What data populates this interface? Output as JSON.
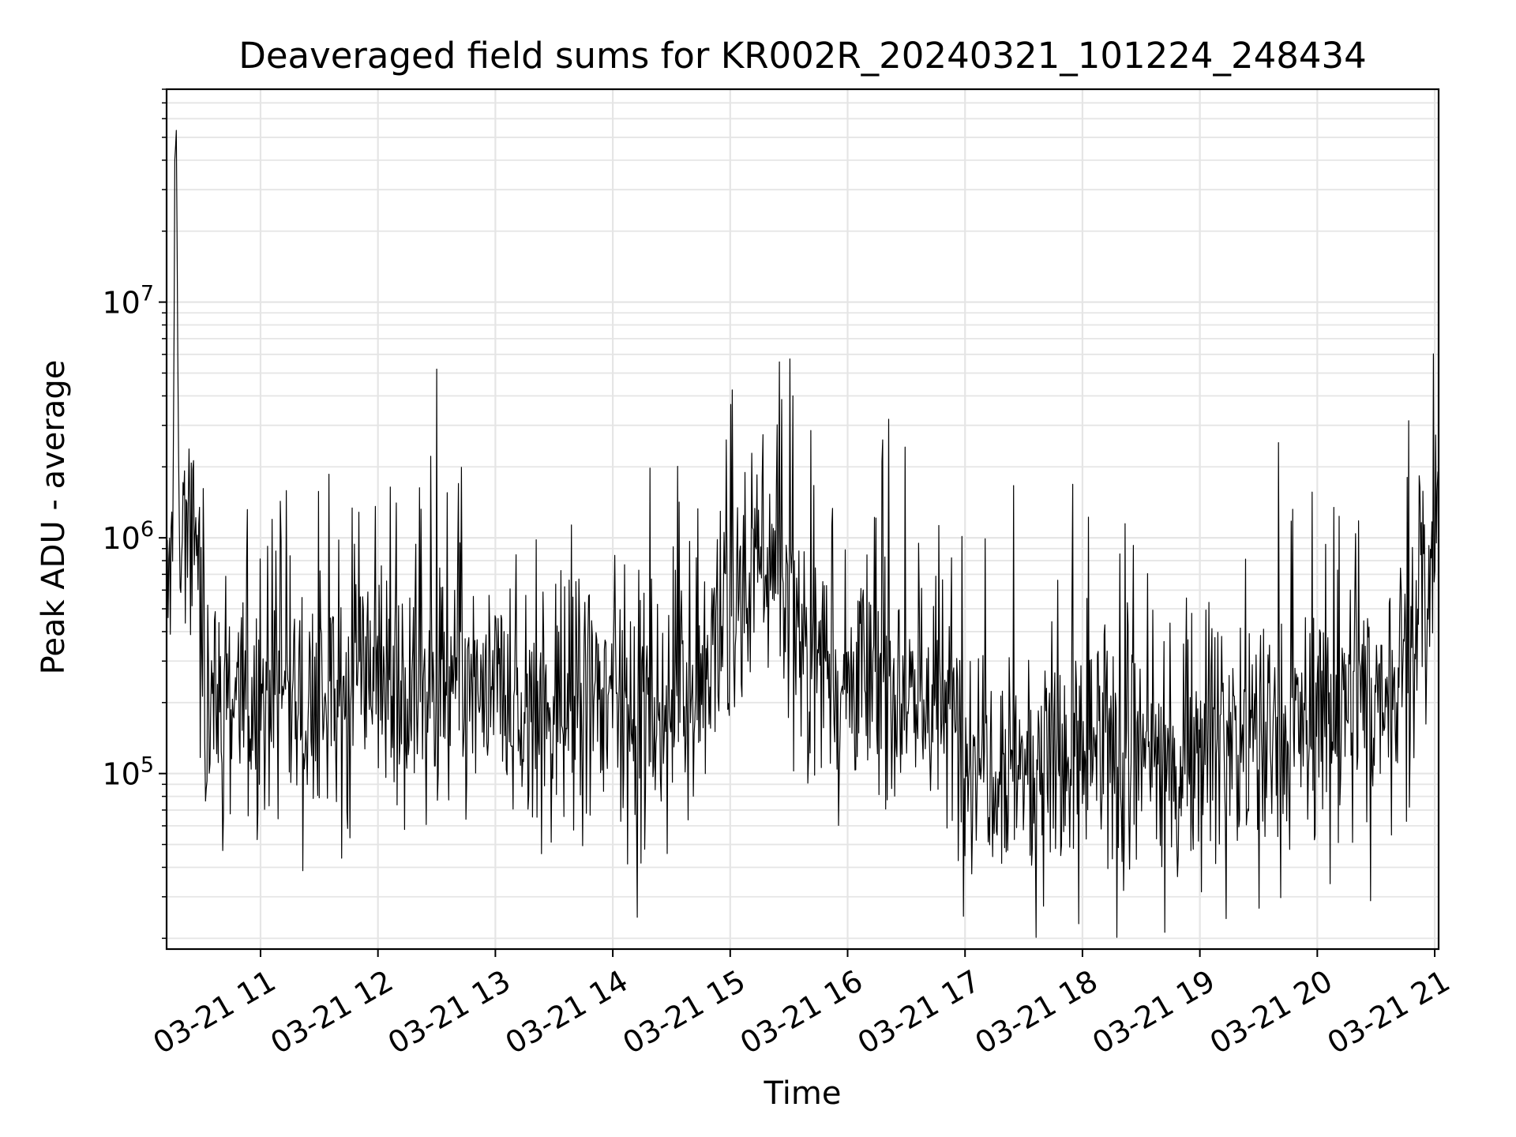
{
  "chart_data": {
    "type": "line",
    "title": "Deaveraged field sums for KR002R_20240321_101224_248434",
    "xlabel": "Time",
    "ylabel": "Peak ADU - average",
    "x_range": [
      "03-21 10:12",
      "03-21 21:02"
    ],
    "x_ticks": [
      "03-21 11",
      "03-21 12",
      "03-21 13",
      "03-21 14",
      "03-21 15",
      "03-21 16",
      "03-21 17",
      "03-21 18",
      "03-21 19",
      "03-21 20",
      "03-21 21"
    ],
    "y_scale": "log",
    "ylim": [
      18000,
      80000000
    ],
    "y_ticks": [
      100000,
      1000000,
      10000000
    ],
    "y_tick_labels": [
      {
        "base": "10",
        "exp": "5"
      },
      {
        "base": "10",
        "exp": "6"
      },
      {
        "base": "10",
        "exp": "7"
      }
    ],
    "grid": true,
    "line_color": "#000000",
    "grid_color": "#e5e5e5",
    "series": [
      {
        "x": [
          "03-21 10:12",
          "03-21 10:15",
          "03-21 10:16",
          "03-21 10:17",
          "03-21 10:18",
          "03-21 10:19",
          "03-21 10:20",
          "03-21 10:21",
          "03-21 10:23",
          "03-21 10:25",
          "03-21 10:27",
          "03-21 10:28",
          "03-21 10:30",
          "03-21 10:32",
          "03-21 10:35",
          "03-21 10:38",
          "03-21 10:42",
          "03-21 10:45",
          "03-21 10:50",
          "03-21 11:00",
          "03-21 11:20",
          "03-21 11:40",
          "03-21 11:53",
          "03-21 12:00",
          "03-21 12:20",
          "03-21 12:40",
          "03-21 13:00",
          "03-21 13:20",
          "03-21 13:40",
          "03-21 14:00",
          "03-21 14:20",
          "03-21 14:40",
          "03-21 15:00",
          "03-21 15:10",
          "03-21 15:20",
          "03-21 15:30",
          "03-21 15:45",
          "03-21 16:00",
          "03-21 16:20",
          "03-21 16:40",
          "03-21 17:00",
          "03-21 17:20",
          "03-21 17:40",
          "03-21 18:00",
          "03-21 18:20",
          "03-21 18:40",
          "03-21 19:00",
          "03-21 19:20",
          "03-21 19:40",
          "03-21 20:00",
          "03-21 20:20",
          "03-21 20:40",
          "03-21 20:50",
          "03-21 21:00",
          "03-21 21:02"
        ],
        "y": [
          500000,
          800000,
          40000000,
          50000000,
          3000000,
          500000,
          1000000,
          1200000,
          1000000,
          900000,
          1500000,
          600000,
          250000,
          180000,
          200000,
          250000,
          200000,
          220000,
          200000,
          200000,
          220000,
          200000,
          300000,
          250000,
          200000,
          220000,
          200000,
          180000,
          200000,
          200000,
          180000,
          200000,
          450000,
          700000,
          800000,
          600000,
          300000,
          250000,
          250000,
          220000,
          150000,
          120000,
          120000,
          110000,
          120000,
          110000,
          150000,
          150000,
          130000,
          180000,
          200000,
          250000,
          350000,
          900000,
          1400000
        ]
      }
    ]
  }
}
